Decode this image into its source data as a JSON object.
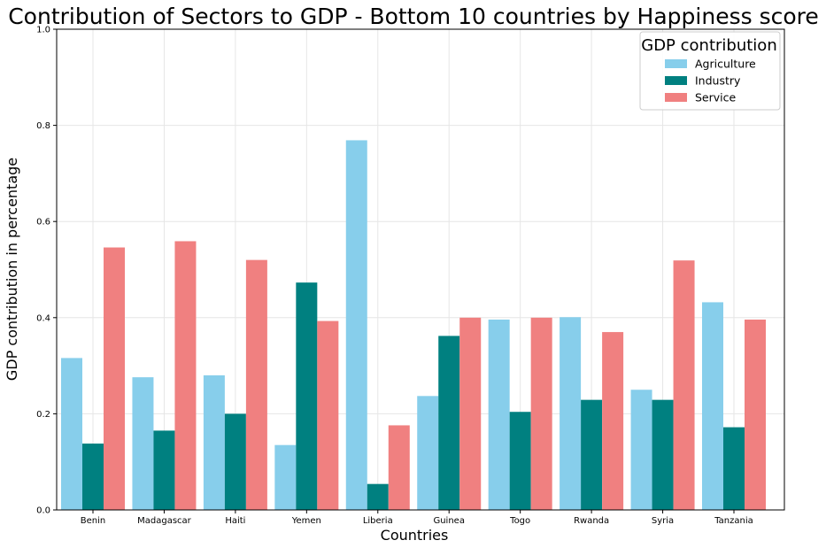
{
  "chart_data": {
    "type": "bar",
    "title": "Contribution of Sectors to GDP - Bottom 10 countries by Happiness score",
    "xlabel": "Countries",
    "ylabel": "GDP contribution in percentage",
    "categories": [
      "Benin",
      "Madagascar",
      "Haiti",
      "Yemen",
      "Liberia",
      "Guinea",
      "Togo",
      "Rwanda",
      "Syria",
      "Tanzania"
    ],
    "series": [
      {
        "name": "Agriculture",
        "color": "#87ceeb",
        "values": [
          0.316,
          0.276,
          0.28,
          0.135,
          0.769,
          0.237,
          0.396,
          0.401,
          0.25,
          0.432
        ]
      },
      {
        "name": "Industry",
        "color": "#008080",
        "values": [
          0.138,
          0.165,
          0.2,
          0.473,
          0.054,
          0.362,
          0.204,
          0.229,
          0.229,
          0.172
        ]
      },
      {
        "name": "Service",
        "color": "#f08080",
        "values": [
          0.546,
          0.559,
          0.52,
          0.393,
          0.176,
          0.4,
          0.4,
          0.37,
          0.519,
          0.396
        ]
      }
    ],
    "ylim": [
      0,
      1.0
    ],
    "yticks": [
      "0.0",
      "0.2",
      "0.4",
      "0.6",
      "0.8",
      "1.0"
    ],
    "grid": true,
    "legend": {
      "title": "GDP contribution",
      "placement": "top-right"
    }
  }
}
